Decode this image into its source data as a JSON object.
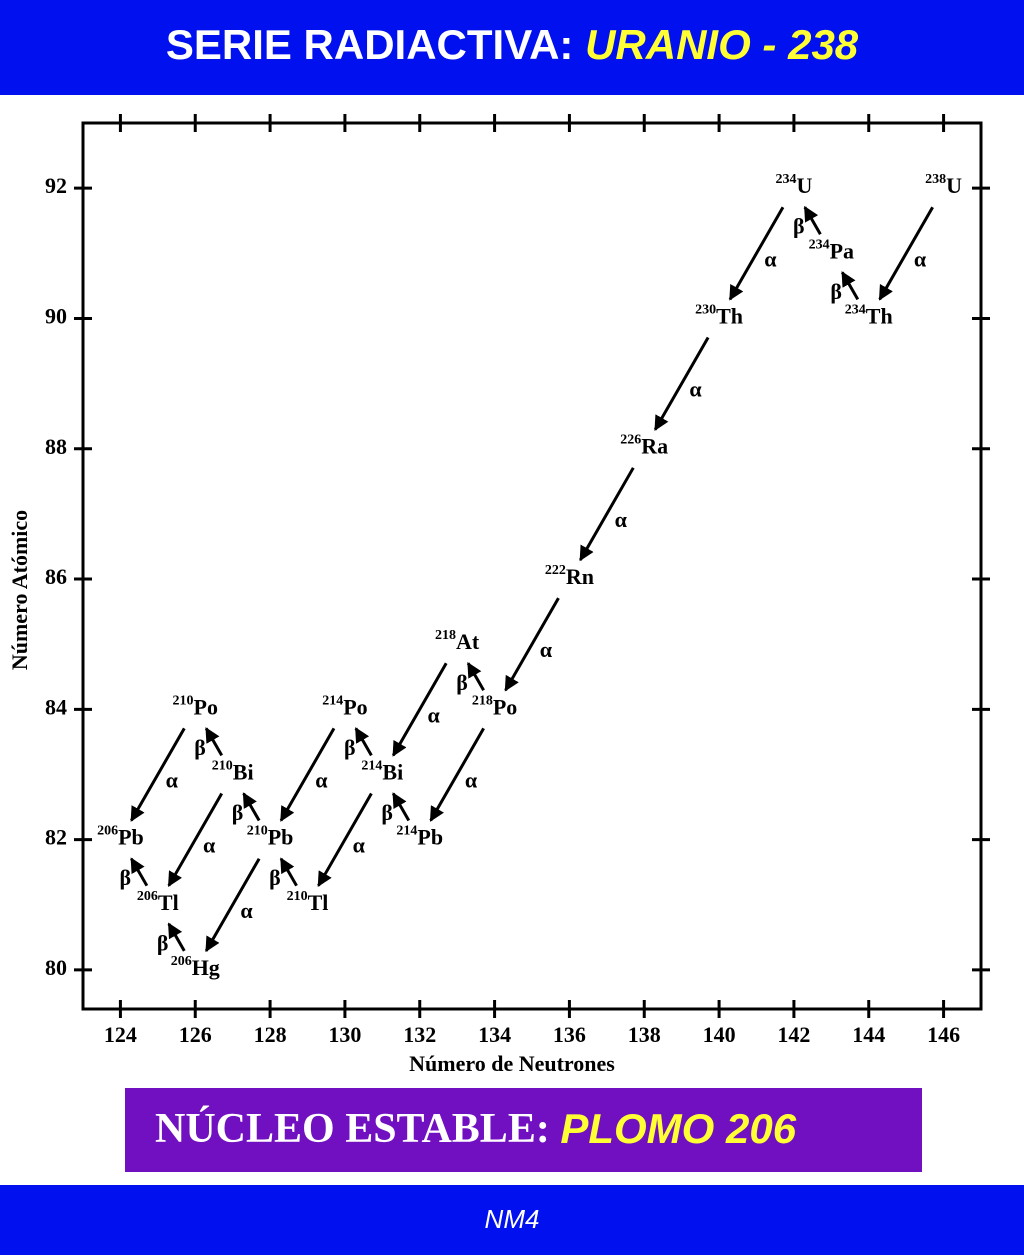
{
  "header": {
    "title": "SERIE RADIACTIVA:",
    "highlight": "URANIO - 238"
  },
  "chart_data": {
    "type": "scatter",
    "xlabel": "Número de Neutrones",
    "ylabel": "Número Atómico",
    "xlim": [
      123,
      147
    ],
    "ylim": [
      79.4,
      93
    ],
    "xticks": [
      124,
      126,
      128,
      130,
      132,
      134,
      136,
      138,
      140,
      142,
      144,
      146
    ],
    "yticks": [
      80,
      82,
      84,
      86,
      88,
      90,
      92
    ],
    "color": "#000000",
    "nodes": [
      {
        "mass": 238,
        "symbol": "U",
        "x": 146,
        "y": 92
      },
      {
        "mass": 234,
        "symbol": "Th",
        "x": 144,
        "y": 90
      },
      {
        "mass": 234,
        "symbol": "Pa",
        "x": 143,
        "y": 91
      },
      {
        "mass": 234,
        "symbol": "U",
        "x": 142,
        "y": 92
      },
      {
        "mass": 230,
        "symbol": "Th",
        "x": 140,
        "y": 90
      },
      {
        "mass": 226,
        "symbol": "Ra",
        "x": 138,
        "y": 88
      },
      {
        "mass": 222,
        "symbol": "Rn",
        "x": 136,
        "y": 86
      },
      {
        "mass": 218,
        "symbol": "Po",
        "x": 134,
        "y": 84
      },
      {
        "mass": 218,
        "symbol": "At",
        "x": 133,
        "y": 85
      },
      {
        "mass": 214,
        "symbol": "Pb",
        "x": 132,
        "y": 82
      },
      {
        "mass": 214,
        "symbol": "Bi",
        "x": 131,
        "y": 83
      },
      {
        "mass": 214,
        "symbol": "Po",
        "x": 130,
        "y": 84
      },
      {
        "mass": 210,
        "symbol": "Tl",
        "x": 129,
        "y": 81
      },
      {
        "mass": 210,
        "symbol": "Pb",
        "x": 128,
        "y": 82
      },
      {
        "mass": 210,
        "symbol": "Bi",
        "x": 127,
        "y": 83
      },
      {
        "mass": 210,
        "symbol": "Po",
        "x": 126,
        "y": 84
      },
      {
        "mass": 206,
        "symbol": "Hg",
        "x": 126,
        "y": 80
      },
      {
        "mass": 206,
        "symbol": "Tl",
        "x": 125,
        "y": 81
      },
      {
        "mass": 206,
        "symbol": "Pb",
        "x": 124,
        "y": 82
      }
    ],
    "decays": [
      {
        "from": 0,
        "to": 1,
        "label": "α"
      },
      {
        "from": 1,
        "to": 2,
        "label": "β"
      },
      {
        "from": 2,
        "to": 3,
        "label": "β"
      },
      {
        "from": 3,
        "to": 4,
        "label": "α"
      },
      {
        "from": 4,
        "to": 5,
        "label": "α"
      },
      {
        "from": 5,
        "to": 6,
        "label": "α"
      },
      {
        "from": 6,
        "to": 7,
        "label": "α"
      },
      {
        "from": 7,
        "to": 9,
        "label": "α"
      },
      {
        "from": 7,
        "to": 8,
        "label": "β"
      },
      {
        "from": 8,
        "to": 10,
        "label": "α"
      },
      {
        "from": 9,
        "to": 10,
        "label": "β"
      },
      {
        "from": 10,
        "to": 11,
        "label": "β"
      },
      {
        "from": 10,
        "to": 12,
        "label": "α"
      },
      {
        "from": 11,
        "to": 13,
        "label": "α"
      },
      {
        "from": 12,
        "to": 13,
        "label": "β"
      },
      {
        "from": 13,
        "to": 14,
        "label": "β"
      },
      {
        "from": 14,
        "to": 15,
        "label": "β"
      },
      {
        "from": 14,
        "to": 17,
        "label": "α"
      },
      {
        "from": 15,
        "to": 18,
        "label": "α"
      },
      {
        "from": 17,
        "to": 18,
        "label": "β"
      },
      {
        "from": 13,
        "to": 16,
        "label": "α"
      },
      {
        "from": 16,
        "to": 17,
        "label": "β"
      }
    ]
  },
  "banner": {
    "text": "NÚCLEO ESTABLE:",
    "highlight": "PLOMO 206"
  },
  "footer": "NM4"
}
